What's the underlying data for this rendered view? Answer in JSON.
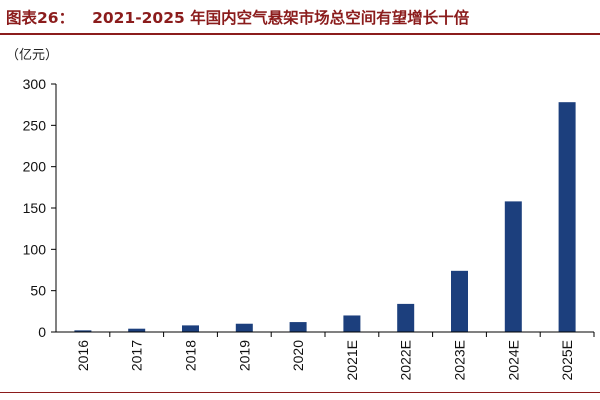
{
  "header": {
    "figure_label": "图表26：",
    "title": "2021-2025 年国内空气悬架市场总空间有望增长十倍"
  },
  "chart_data": {
    "type": "bar",
    "title": "2021-2025 年国内空气悬架市场总空间有望增长十倍",
    "ylabel": "（亿元）",
    "xlabel": "",
    "categories": [
      "2016",
      "2017",
      "2018",
      "2019",
      "2020",
      "2021E",
      "2022E",
      "2023E",
      "2024E",
      "2025E"
    ],
    "values": [
      2,
      4,
      8,
      10,
      12,
      20,
      34,
      74,
      158,
      278
    ],
    "ylim": [
      0,
      300
    ],
    "yticks": [
      0,
      50,
      100,
      150,
      200,
      250,
      300
    ],
    "bar_color": "#1c3f7d",
    "grid": false,
    "legend": "none"
  }
}
